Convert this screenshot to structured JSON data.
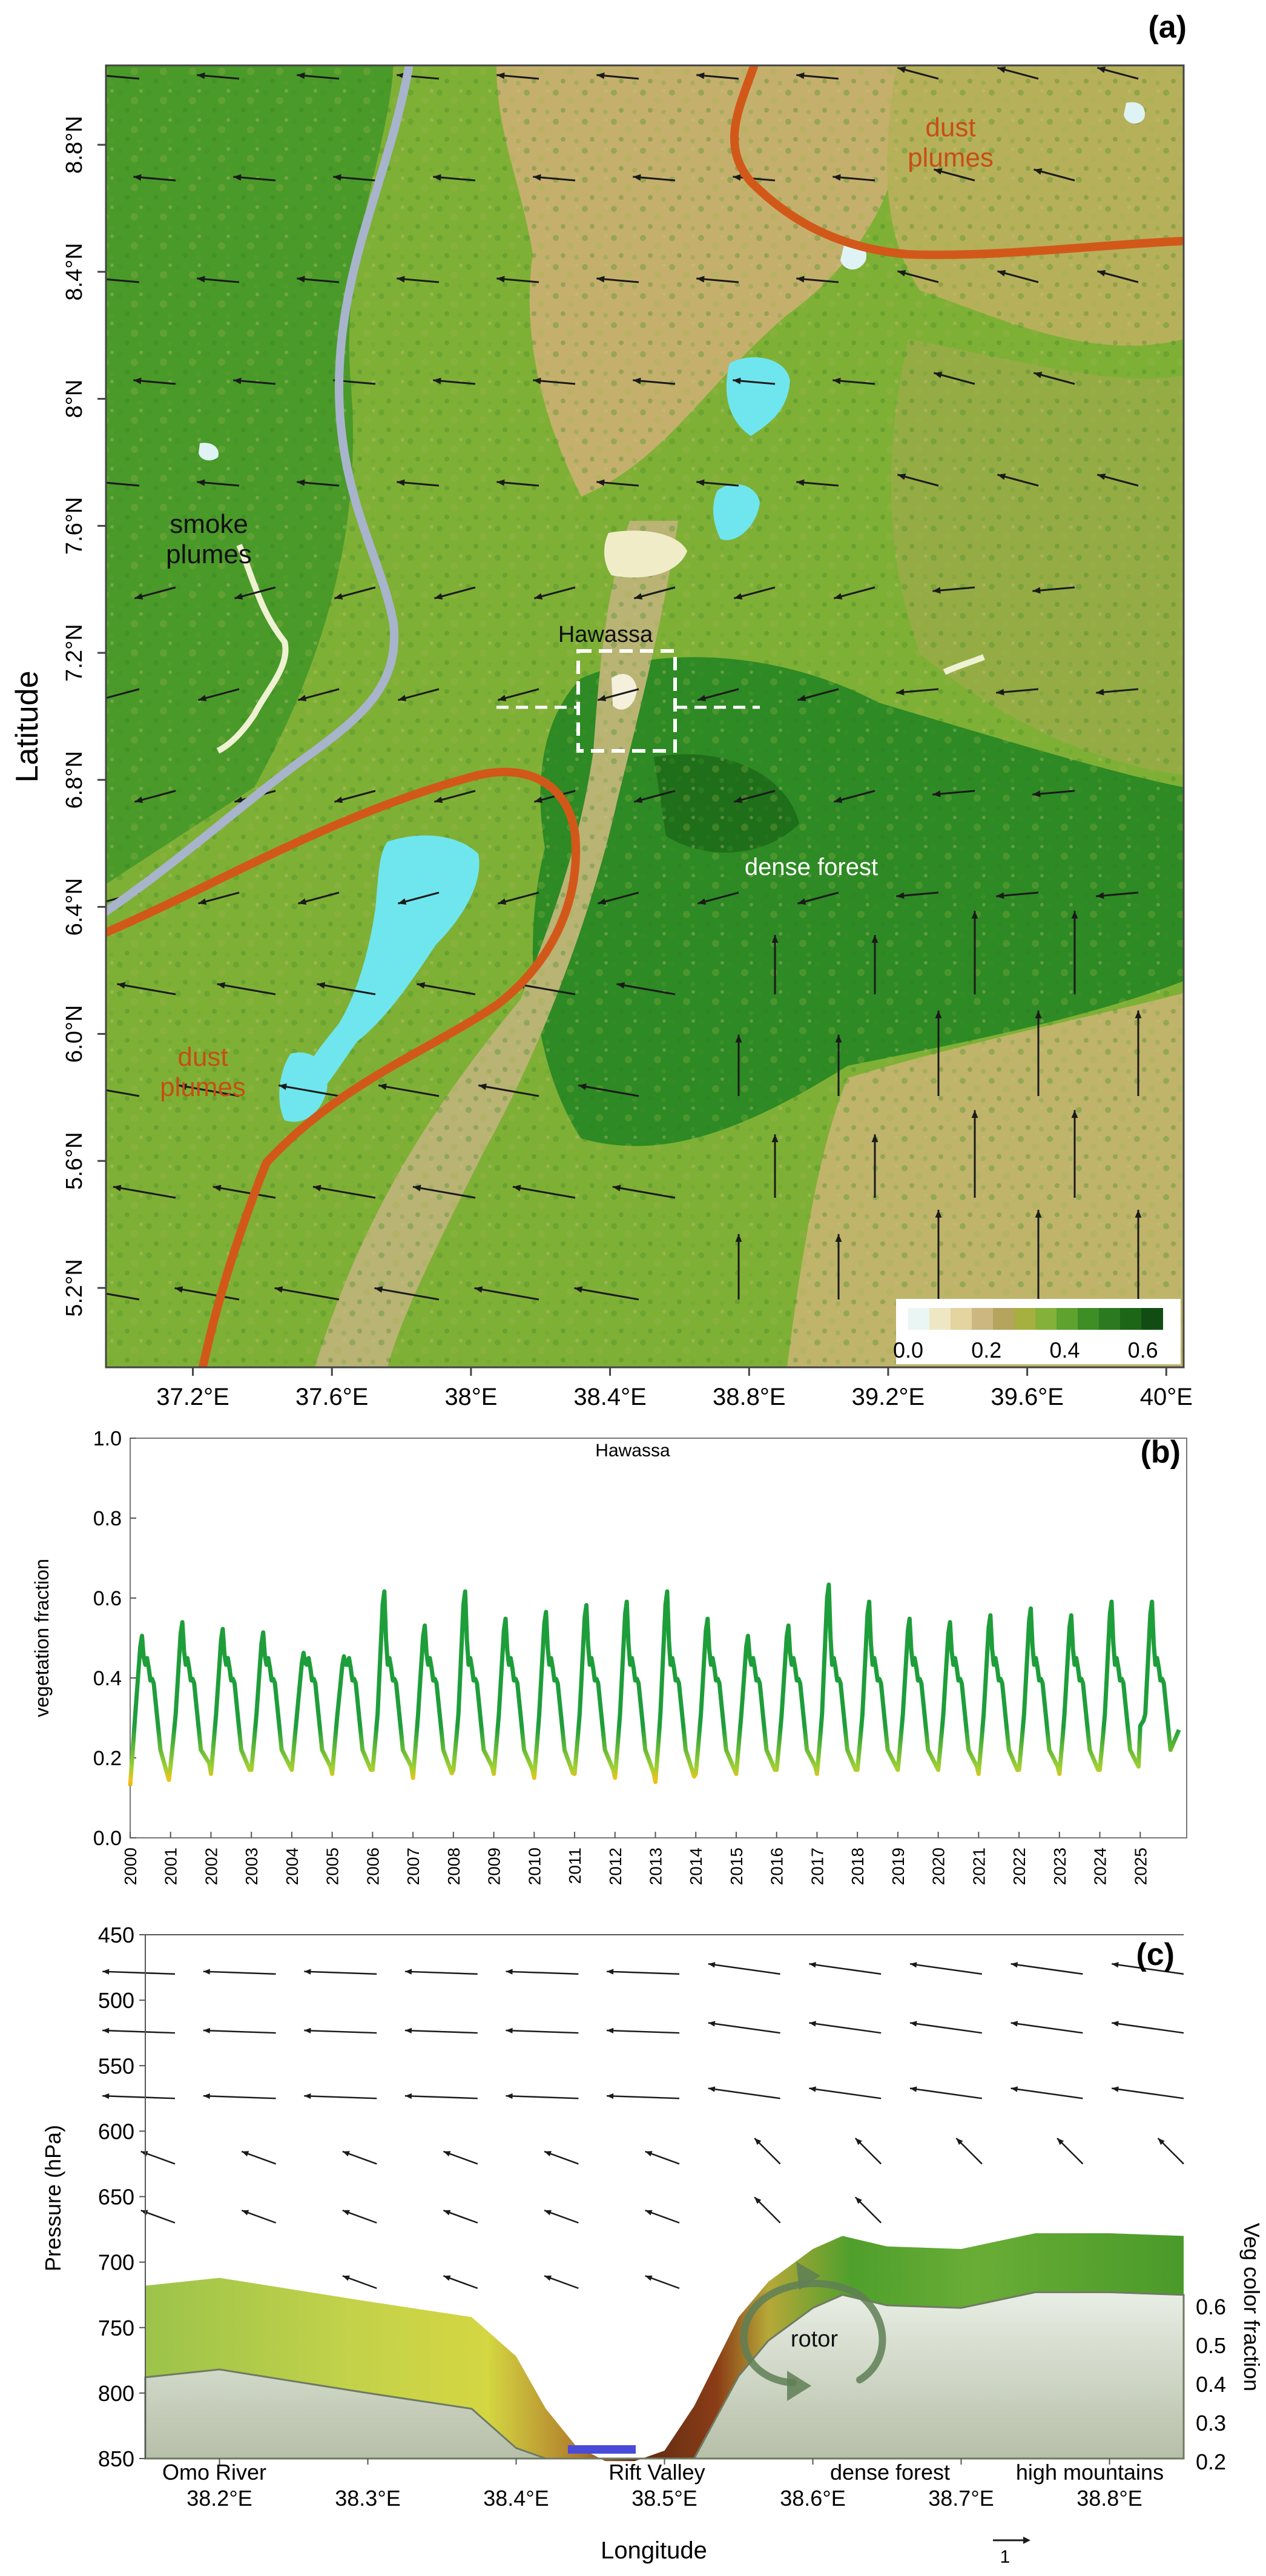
{
  "colors": {
    "dust_line": "#d2581a",
    "smoke_line": "#a8b4cc",
    "lake": "#6fe6ee",
    "forest": "#2c8a24",
    "arrow": "#1a1a1a",
    "series_high": "#1e9e3a",
    "series_low": "#f08a14",
    "rift_floor": "#4a4ad8"
  },
  "panel_a": {
    "label": "(a)",
    "ylabel": "Latitude",
    "lat_ticks": [
      "8.8°N",
      "8.4°N",
      "8°N",
      "7.6°N",
      "7.2°N",
      "6.8°N",
      "6.4°N",
      "6.0°N",
      "5.6°N",
      "5.2°N"
    ],
    "lon_ticks": [
      "37.2°E",
      "37.6°E",
      "38°E",
      "38.4°E",
      "38.8°E",
      "39.2°E",
      "39.6°E",
      "40°E"
    ],
    "annotations": {
      "dust_top": "dust\nplumes",
      "smoke": "smoke\nplumes",
      "hawassa": "Hawassa",
      "forest": "dense forest",
      "dust_bottom": "dust\nplumes"
    },
    "colorbar_ticks": [
      "0.0",
      "0.2",
      "0.4",
      "0.6"
    ]
  },
  "chart_data": [
    {
      "type": "map",
      "title": "(a)",
      "ylabel": "Latitude",
      "xlim": [
        36.95,
        40.05
      ],
      "ylim": [
        4.95,
        9.05
      ],
      "colorbar": {
        "range": [
          0.0,
          0.65
        ],
        "ticks": [
          0.0,
          0.2,
          0.4,
          0.6
        ]
      }
    },
    {
      "type": "line",
      "title": "(b)",
      "annotation": "Hawassa",
      "ylabel": "vegetation  fraction",
      "ylim": [
        0.0,
        1.0
      ],
      "yticks": [
        "0.0",
        "0.2",
        "0.4",
        "0.6",
        "0.8",
        "1.0"
      ],
      "years": [
        "2000",
        "2001",
        "2002",
        "2003",
        "2004",
        "2005",
        "2006",
        "2007",
        "2008",
        "2009",
        "2010",
        "2011",
        "2012",
        "2013",
        "2014",
        "2015",
        "2016",
        "2017",
        "2018",
        "2019",
        "2020",
        "2021",
        "2022",
        "2023",
        "2024",
        "2025"
      ],
      "series": [
        {
          "annual_peak": [
            0.52,
            0.56,
            0.54,
            0.53,
            0.47,
            0.46,
            0.65,
            0.55,
            0.65,
            0.57,
            0.59,
            0.61,
            0.62,
            0.65,
            0.57,
            0.52,
            0.55,
            0.67,
            0.62,
            0.57,
            0.56,
            0.58,
            0.6,
            0.58,
            0.62,
            0.62
          ],
          "annual_min": [
            0.13,
            0.18,
            0.16,
            0.17,
            0.17,
            0.16,
            0.17,
            0.15,
            0.17,
            0.16,
            0.15,
            0.16,
            0.15,
            0.14,
            0.16,
            0.16,
            0.17,
            0.16,
            0.17,
            0.17,
            0.17,
            0.16,
            0.17,
            0.16,
            0.17,
            0.28
          ]
        }
      ]
    },
    {
      "type": "area",
      "title": "(c)",
      "xlabel": "Longitude",
      "ylabel": "Pressure (hPa)",
      "ylabel2": "Veg color fraction",
      "xlim": [
        38.15,
        38.85
      ],
      "xticks": [
        "38.2°E",
        "38.3°E",
        "38.4°E",
        "38.5°E",
        "38.6°E",
        "38.7°E",
        "38.8°E"
      ],
      "ylim": [
        850,
        450
      ],
      "yticks": [
        "450",
        "500",
        "550",
        "600",
        "650",
        "700",
        "750",
        "800",
        "850"
      ],
      "y2ticks": [
        "0.6",
        "0.5",
        "0.4",
        "0.3",
        "0.2"
      ],
      "place_labels": [
        "Omo River",
        "Rift Valley",
        "dense forest",
        "high mountains"
      ],
      "rotor_label": "rotor",
      "wind_scale": "1",
      "terrain_lon": [
        38.15,
        38.2,
        38.3,
        38.37,
        38.4,
        38.42,
        38.44,
        38.46,
        38.48,
        38.5,
        38.52,
        38.55,
        38.57,
        38.6,
        38.62,
        38.65,
        38.7,
        38.75,
        38.8,
        38.85
      ],
      "terrain_hPa": [
        718,
        712,
        730,
        742,
        772,
        812,
        840,
        852,
        852,
        844,
        810,
        742,
        715,
        690,
        680,
        688,
        690,
        678,
        678,
        680
      ]
    }
  ],
  "panel_b": {
    "label": "(b)",
    "station": "Hawassa",
    "ylabel": "vegetation  fraction",
    "yticks": [
      "0.0",
      "0.2",
      "0.4",
      "0.6",
      "0.8",
      "1.0"
    ]
  },
  "panel_c": {
    "label": "(c)",
    "xlabel": "Longitude",
    "ylabel": "Pressure (hPa)",
    "ylabel2": "Veg color fraction",
    "yticks": [
      "450",
      "500",
      "550",
      "600",
      "650",
      "700",
      "750",
      "800",
      "850"
    ],
    "y2ticks": [
      "0.6",
      "0.5",
      "0.4",
      "0.3",
      "0.2"
    ],
    "xticks": [
      "38.2°E",
      "38.3°E",
      "38.4°E",
      "38.5°E",
      "38.6°E",
      "38.7°E",
      "38.8°E"
    ],
    "places": {
      "omo": "Omo River",
      "rift": "Rift Valley",
      "forest": "dense forest",
      "mountains": "high mountains"
    },
    "rotor": "rotor",
    "scale": "1"
  }
}
